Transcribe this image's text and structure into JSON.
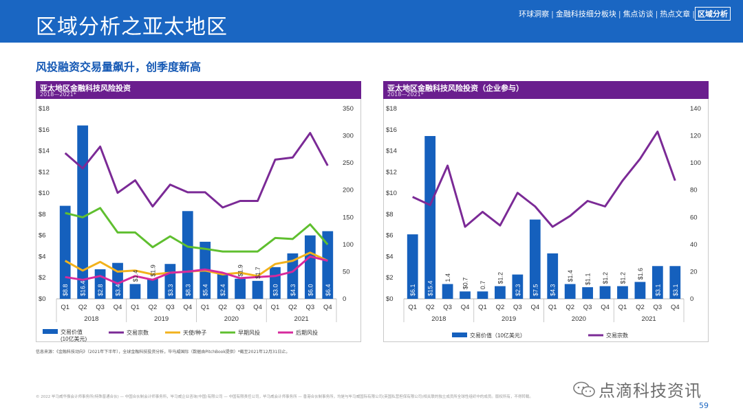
{
  "header": {
    "title": "区域分析之亚太地区",
    "nav": [
      {
        "label": "环球洞察",
        "active": false
      },
      {
        "label": "金融科技细分板块",
        "active": false
      },
      {
        "label": "焦点访谈",
        "active": false
      },
      {
        "label": "热点文章",
        "active": false
      },
      {
        "label": "区域分析",
        "active": true
      }
    ]
  },
  "subtitle": "风投融资交易量飙升，创季度新高",
  "footnote": "信息来源：《金融科技动向》（2021年下半年），全球金融科技投资分析，毕马威国际（数据由PitchBook提供）*截至2021年12月31日止。",
  "copyright": "© 2022 毕马威华振会计师事务所(特殊普通合伙) — 中国合伙制会计师事务所，毕马威企业咨询(中国)有限公司 — 中国有限责任公司，毕马威会计师事务所 — 香港合伙制事务所，均是与毕马威国际有限公司(英国私营担保有限公司)相关联的独立成员所全球性组织中的成员。版权所有，不得转载。",
  "watermark": "点滴科技资讯",
  "page_number": "59",
  "colors": {
    "bar": "#1560bd",
    "count": "#7b2a96",
    "angel": "#f2b21c",
    "early": "#5fbf2f",
    "late": "#d62a9d",
    "header": "#1a66c2",
    "panel": "#6a1e8e"
  },
  "chart_data": [
    {
      "type": "bar",
      "title": "亚太地区金融科技风险投资",
      "period": "2018—2021*",
      "quarters": [
        "Q1",
        "Q2",
        "Q3",
        "Q4",
        "Q1",
        "Q2",
        "Q3",
        "Q4",
        "Q1",
        "Q2",
        "Q3",
        "Q4",
        "Q1",
        "Q2",
        "Q3",
        "Q4"
      ],
      "years": [
        "2018",
        "2019",
        "2020",
        "2021"
      ],
      "y_left_ticks": [
        "$0",
        "$2",
        "$4",
        "$6",
        "$8",
        "$10",
        "$12",
        "$14",
        "$16",
        "$18"
      ],
      "y_right_ticks": [
        "0",
        "50",
        "100",
        "150",
        "200",
        "250",
        "300",
        "350"
      ],
      "ylim_left": [
        0,
        18
      ],
      "ylim_right": [
        0,
        350
      ],
      "series": [
        {
          "name": "交易价值\n(10亿美元)",
          "kind": "bar",
          "axis": "left",
          "color": "#1560bd",
          "values": [
            8.8,
            16.4,
            2.8,
            3.4,
            1.4,
            1.9,
            3.3,
            8.3,
            5.4,
            2.4,
            1.9,
            1.7,
            3.0,
            4.3,
            6.0,
            6.4
          ],
          "labels": [
            "$8.8",
            "$16.4",
            "$2.8",
            "$3.4",
            "$1.4",
            "$1.9",
            "$3.3",
            "$8.3",
            "$5.4",
            "$2.4",
            "$1.9",
            "$1.7",
            "$3.0",
            "$4.3",
            "$6.0",
            "$6.4"
          ]
        },
        {
          "name": "交易宗数",
          "kind": "line",
          "axis": "right",
          "color": "#7b2a96",
          "values": [
            268,
            240,
            280,
            195,
            218,
            170,
            210,
            196,
            196,
            168,
            180,
            180,
            256,
            260,
            305,
            245
          ]
        },
        {
          "name": "天使/种子",
          "kind": "line",
          "axis": "right",
          "color": "#f2b21c",
          "values": [
            70,
            52,
            68,
            50,
            52,
            45,
            48,
            50,
            52,
            45,
            48,
            42,
            64,
            70,
            85,
            70
          ]
        },
        {
          "name": "早期风投",
          "kind": "line",
          "axis": "right",
          "color": "#5fbf2f",
          "values": [
            158,
            150,
            167,
            122,
            122,
            95,
            115,
            96,
            92,
            87,
            87,
            87,
            112,
            110,
            137,
            100
          ]
        },
        {
          "name": "后期风投",
          "kind": "line",
          "axis": "right",
          "color": "#d62a9d",
          "values": [
            40,
            35,
            42,
            28,
            42,
            35,
            48,
            50,
            54,
            48,
            38,
            40,
            42,
            50,
            78,
            70
          ]
        }
      ]
    },
    {
      "type": "bar",
      "title": "亚太地区金融科技风险投资（企业参与）",
      "period": "2018—2021*",
      "quarters": [
        "Q1",
        "Q2",
        "Q3",
        "Q4",
        "Q1",
        "Q2",
        "Q3",
        "Q4",
        "Q1",
        "Q2",
        "Q3",
        "Q4",
        "Q1",
        "Q2",
        "Q3",
        "Q4"
      ],
      "years": [
        "2018",
        "2019",
        "2020",
        "2021"
      ],
      "y_left_ticks": [
        "$0",
        "$2",
        "$4",
        "$6",
        "$8",
        "$10",
        "$12",
        "$14",
        "$16",
        "$18"
      ],
      "y_right_ticks": [
        "0",
        "20",
        "40",
        "60",
        "80",
        "100",
        "120",
        "140"
      ],
      "ylim_left": [
        0,
        18
      ],
      "ylim_right": [
        0,
        140
      ],
      "series": [
        {
          "name": "交易价值（10亿美元）",
          "kind": "bar",
          "axis": "left",
          "color": "#1560bd",
          "values": [
            6.1,
            15.4,
            1.4,
            0.7,
            0.7,
            1.2,
            2.3,
            7.5,
            4.3,
            1.4,
            1.1,
            1.2,
            1.2,
            1.6,
            3.1,
            3.1
          ],
          "labels": [
            "$6.1",
            "$15.4",
            "1.4",
            "$0.7",
            "0.7",
            "$1.2",
            "$2.3",
            "$7.5",
            "$4.3",
            "$1.4",
            "$1.1",
            "$1.2",
            "$1.2",
            "$1.6",
            "$3.1",
            "$3.1"
          ]
        },
        {
          "name": "交易宗数",
          "kind": "line",
          "axis": "right",
          "color": "#7b2a96",
          "values": [
            75,
            69,
            98,
            53,
            64,
            54,
            78,
            68,
            53,
            61,
            72,
            68,
            87,
            103,
            123,
            87
          ]
        }
      ]
    }
  ]
}
